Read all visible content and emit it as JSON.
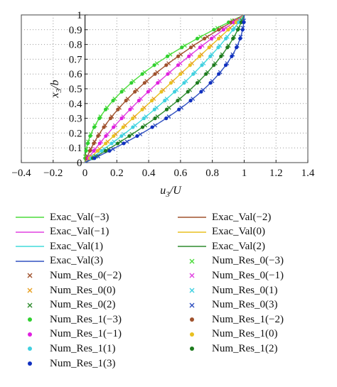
{
  "chart_data": {
    "type": "line",
    "title": "",
    "xlabel": "u3/U",
    "ylabel": "x3/b",
    "xlim": [
      -0.4,
      1.4
    ],
    "ylim": [
      0,
      1
    ],
    "xticks": [
      "-0.4",
      "-0.2",
      "0",
      "0.2",
      "0.4",
      "0.6",
      "0.8",
      "1",
      "1.2",
      "1.4"
    ],
    "yticks": [
      "0",
      "0.1",
      "0.2",
      "0.3",
      "0.4",
      "0.5",
      "0.6",
      "0.7",
      "0.8",
      "0.9",
      "1"
    ],
    "grid": true,
    "legend_position": "bottom",
    "series": [
      {
        "name": "Exac_Val(−3)",
        "kind": "line",
        "P": -3,
        "color": "#4cdc3c"
      },
      {
        "name": "Exac_Val(−2)",
        "kind": "line",
        "P": -2,
        "color": "#a0522d"
      },
      {
        "name": "Exac_Val(−1)",
        "kind": "line",
        "P": -1,
        "color": "#e040e0"
      },
      {
        "name": "Exac_Val(0)",
        "kind": "line",
        "P": 0,
        "color": "#e8c020"
      },
      {
        "name": "Exac_Val(1)",
        "kind": "line",
        "P": 1,
        "color": "#40dcdc"
      },
      {
        "name": "Exac_Val(2)",
        "kind": "line",
        "P": 2,
        "color": "#2e8b2e"
      },
      {
        "name": "Exac_Val(3)",
        "kind": "line",
        "P": 3,
        "color": "#3050c0"
      },
      {
        "name": "Num_Res_0(−3)",
        "kind": "x",
        "P": -3,
        "color": "#4cdc3c"
      },
      {
        "name": "Num_Res_0(−2)",
        "kind": "x",
        "P": -2,
        "color": "#a0522d"
      },
      {
        "name": "Num_Res_0(−1)",
        "kind": "x",
        "P": -1,
        "color": "#e040e0"
      },
      {
        "name": "Num_Res_0(0)",
        "kind": "x",
        "P": 0,
        "color": "#e8a020"
      },
      {
        "name": "Num_Res_0(1)",
        "kind": "x",
        "P": 1,
        "color": "#40d0e0"
      },
      {
        "name": "Num_Res_0(2)",
        "kind": "x",
        "P": 2,
        "color": "#2e8b2e"
      },
      {
        "name": "Num_Res_0(3)",
        "kind": "x",
        "P": 3,
        "color": "#3050c0"
      },
      {
        "name": "Num_Res_1(−3)",
        "kind": "dot",
        "P": -3,
        "color": "#30d030"
      },
      {
        "name": "Num_Res_1(−2)",
        "kind": "dot",
        "P": -2,
        "color": "#a0522d"
      },
      {
        "name": "Num_Res_1(−1)",
        "kind": "dot",
        "P": -1,
        "color": "#e020e0"
      },
      {
        "name": "Num_Res_1(0)",
        "kind": "dot",
        "P": 0,
        "color": "#e8c020"
      },
      {
        "name": "Num_Res_1(1)",
        "kind": "dot",
        "P": 1,
        "color": "#40d0e0"
      },
      {
        "name": "Num_Res_1(2)",
        "kind": "dot",
        "P": 2,
        "color": "#1e7b1e"
      },
      {
        "name": "Num_Res_1(3)",
        "kind": "dot",
        "P": 3,
        "color": "#1030c0"
      }
    ],
    "curve_formula": "u3/U = y + (P/3)*y*(1-y), y = x3/b",
    "sample_y": [
      0.03,
      0.08,
      0.13,
      0.18,
      0.24,
      0.3,
      0.36,
      0.42,
      0.48,
      0.54,
      0.6,
      0.66,
      0.72,
      0.78,
      0.84,
      0.9,
      0.95
    ]
  }
}
